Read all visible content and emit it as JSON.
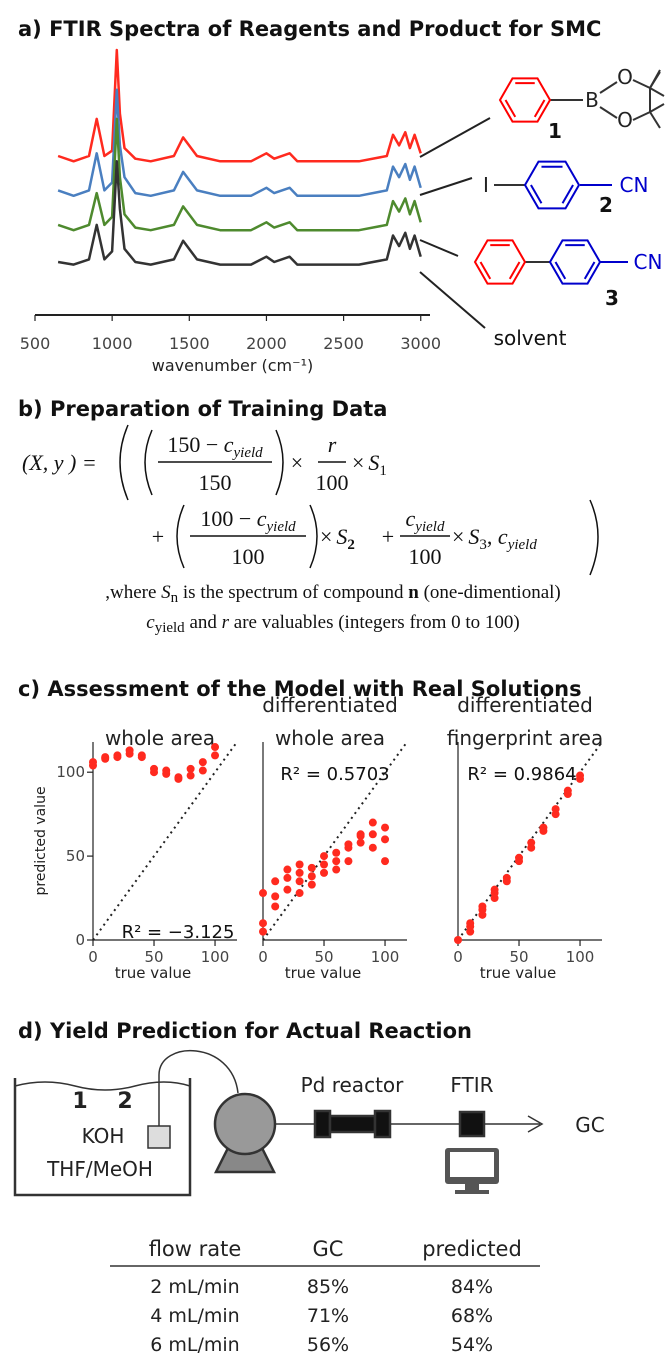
{
  "panel_a": {
    "title": "a) FTIR Spectra of Reagents and Product for SMC",
    "atoms": [
      "B",
      "O",
      "O",
      "I",
      "CN",
      "CN"
    ]
  },
  "panel_b": {
    "title": "b) Preparation of Training Data",
    "formula": [
      "(X, y ) =",
      "150 − ",
      "c",
      "yield",
      "150",
      "×",
      "r",
      "100",
      "×",
      "S",
      "1",
      "+",
      "100 − ",
      "c",
      "yield",
      "100",
      "×",
      "S",
      "2",
      "+",
      "c",
      "yield",
      "100",
      "×",
      "S",
      "3",
      ", ",
      "c",
      "yield"
    ],
    "note_lines": [
      [
        ",where ",
        "S",
        "n",
        " is the spectrum of compound ",
        "n",
        " (one-dimentional)"
      ],
      [
        "c",
        "yield",
        " and ",
        "r",
        " are valuables (integers from 0 to 100)"
      ]
    ]
  },
  "panel_c": {
    "title": "c) Assessment of the Model with Real Solutions"
  },
  "panel_d": {
    "title": "d) Yield Prediction for Actual Reaction",
    "diagram": {
      "labels": [
        "1",
        "2",
        "KOH",
        "THF/MeOH",
        "Pd reactor",
        "FTIR",
        "GC"
      ]
    },
    "table": {
      "header": [
        "flow rate",
        "GC",
        "predicted"
      ],
      "rows": [
        [
          "2 mL/min",
          "85%",
          "84%"
        ],
        [
          "4 mL/min",
          "71%",
          "68%"
        ],
        [
          "6 mL/min",
          "56%",
          "54%"
        ]
      ]
    }
  },
  "chart_data": [
    {
      "type": "line",
      "xlabel": "wavenumber (cm⁻¹)",
      "x": [
        650,
        750,
        850,
        900,
        950,
        1000,
        1030,
        1050,
        1080,
        1150,
        1250,
        1400,
        1460,
        1550,
        1700,
        1900,
        2000,
        2050,
        2150,
        2200,
        2400,
        2600,
        2780,
        2820,
        2860,
        2900,
        2930,
        2960,
        3000
      ],
      "xlim": [
        500,
        3060
      ],
      "xticks": [
        500,
        1000,
        1500,
        2000,
        2500,
        3000
      ],
      "ylim": [
        0,
        100
      ],
      "series": [
        {
          "name": "1",
          "color": "#ff2a1f",
          "values": [
            60,
            58,
            60,
            74,
            60,
            62,
            100,
            76,
            63,
            59,
            58,
            60,
            67,
            60,
            58,
            58,
            61,
            59,
            61,
            58,
            58,
            58,
            60,
            68,
            64,
            69,
            63,
            68,
            61
          ]
        },
        {
          "name": "2",
          "color": "#4a7fc0",
          "values": [
            47,
            45,
            47,
            61,
            47,
            50,
            85,
            64,
            52,
            46,
            45,
            47,
            54,
            47,
            45,
            45,
            48,
            46,
            48,
            45,
            45,
            45,
            47,
            56,
            52,
            57,
            51,
            56,
            48
          ]
        },
        {
          "name": "3",
          "color": "#4e8a2e",
          "values": [
            34,
            32,
            34,
            46,
            34,
            37,
            74,
            52,
            38,
            33,
            32,
            34,
            41,
            34,
            32,
            32,
            35,
            33,
            35,
            32,
            32,
            32,
            34,
            43,
            39,
            44,
            38,
            43,
            35
          ]
        },
        {
          "name": "solvent",
          "color": "#333333",
          "values": [
            20,
            19,
            21,
            34,
            21,
            24,
            58,
            40,
            25,
            20,
            19,
            21,
            28,
            21,
            19,
            19,
            22,
            20,
            22,
            19,
            19,
            19,
            21,
            30,
            26,
            31,
            25,
            30,
            22
          ]
        }
      ]
    },
    {
      "type": "scatter",
      "title_lines": [
        "whole area"
      ],
      "xlabel": "true value",
      "ylabel": "predicted value",
      "annotation": "R² = −3.125",
      "color": "#ff2a1f",
      "x": [
        0,
        0,
        10,
        10,
        20,
        20,
        30,
        30,
        40,
        40,
        50,
        50,
        60,
        60,
        70,
        70,
        80,
        80,
        90,
        90,
        100,
        100
      ],
      "values": [
        104,
        106,
        108,
        109,
        109,
        110,
        111,
        113,
        110,
        109,
        102,
        100,
        99,
        101,
        96,
        97,
        98,
        102,
        101,
        106,
        110,
        115
      ],
      "xlim": [
        0,
        118
      ],
      "ylim": [
        0,
        118
      ],
      "xticks": [
        0,
        50,
        100
      ],
      "yticks": [
        0,
        50,
        100
      ]
    },
    {
      "type": "scatter",
      "title_lines": [
        "differentiated",
        "whole area"
      ],
      "xlabel": "true value",
      "annotation": "R² = 0.5703",
      "color": "#ff2a1f",
      "x": [
        0,
        0,
        0,
        10,
        10,
        10,
        20,
        20,
        20,
        30,
        30,
        30,
        30,
        40,
        40,
        40,
        50,
        50,
        50,
        60,
        60,
        60,
        70,
        70,
        70,
        80,
        80,
        80,
        90,
        90,
        90,
        100,
        100,
        100
      ],
      "values": [
        5,
        10,
        28,
        20,
        26,
        35,
        30,
        37,
        42,
        28,
        35,
        40,
        45,
        33,
        38,
        43,
        40,
        45,
        50,
        42,
        47,
        52,
        47,
        55,
        57,
        58,
        62,
        63,
        55,
        63,
        70,
        47,
        60,
        67
      ],
      "xlim": [
        0,
        118
      ],
      "ylim": [
        0,
        118
      ],
      "xticks": [
        0,
        50,
        100
      ]
    },
    {
      "type": "scatter",
      "title_lines": [
        "differentiated",
        "fingerprint area"
      ],
      "xlabel": "true value",
      "annotation": "R² = 0.9864",
      "color": "#ff2a1f",
      "x": [
        0,
        10,
        10,
        10,
        20,
        20,
        20,
        30,
        30,
        30,
        40,
        40,
        50,
        50,
        60,
        60,
        70,
        70,
        80,
        80,
        90,
        90,
        100,
        100
      ],
      "values": [
        0,
        5,
        8,
        10,
        15,
        18,
        20,
        25,
        28,
        30,
        35,
        37,
        47,
        49,
        55,
        58,
        65,
        67,
        75,
        78,
        87,
        89,
        96,
        98
      ],
      "xlim": [
        0,
        118
      ],
      "ylim": [
        0,
        118
      ],
      "xticks": [
        0,
        50,
        100
      ]
    }
  ]
}
